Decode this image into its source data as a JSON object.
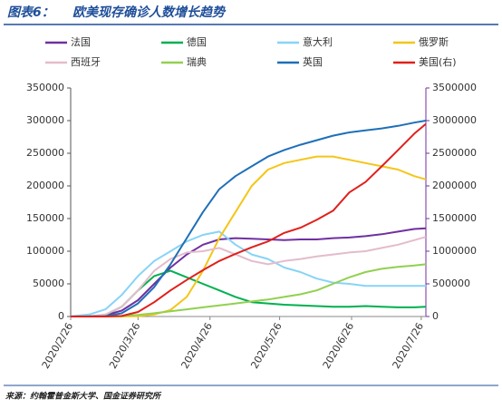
{
  "chart_data": {
    "type": "line",
    "figure_label": "图表6：",
    "title": "欧美现存确诊人数增长趋势",
    "source": "来源：约翰霍普金斯大学、国金证券研究所",
    "x": [
      "2020/2/26",
      "2020/3/5",
      "2020/3/12",
      "2020/3/19",
      "2020/3/26",
      "2020/4/2",
      "2020/4/9",
      "2020/4/16",
      "2020/4/23",
      "2020/4/30",
      "2020/5/7",
      "2020/5/14",
      "2020/5/21",
      "2020/5/28",
      "2020/6/4",
      "2020/6/11",
      "2020/6/18",
      "2020/6/25",
      "2020/7/2",
      "2020/7/9",
      "2020/7/16",
      "2020/7/23",
      "2020/7/28"
    ],
    "xlim": [
      "2020/2/26",
      "2020/7/28"
    ],
    "xticks": [
      "2020/2/26",
      "2020/3/26",
      "2020/4/26",
      "2020/5/26",
      "2020/6/26",
      "2020/7/26"
    ],
    "ylim": [
      0,
      350000
    ],
    "yticks": [
      0,
      50000,
      100000,
      150000,
      200000,
      250000,
      300000,
      350000
    ],
    "y2lim": [
      0,
      3500000
    ],
    "y2ticks": [
      0,
      500000,
      1000000,
      1500000,
      2000000,
      2500000,
      3000000,
      3500000
    ],
    "series": [
      {
        "name": "法国",
        "color": "#7030a0",
        "values": [
          0,
          300,
          2000,
          9000,
          25000,
          50000,
          75000,
          95000,
          110000,
          118000,
          120000,
          119000,
          118000,
          117000,
          118000,
          118000,
          120000,
          121000,
          123000,
          126000,
          130000,
          134000,
          135000
        ]
      },
      {
        "name": "德国",
        "color": "#00b050",
        "values": [
          0,
          300,
          2500,
          15000,
          40000,
          62000,
          70000,
          60000,
          50000,
          40000,
          30000,
          22000,
          20000,
          18000,
          17000,
          16000,
          15000,
          15000,
          16000,
          15000,
          14000,
          14000,
          15000
        ]
      },
      {
        "name": "意大利",
        "color": "#87d4f5",
        "values": [
          400,
          3000,
          11000,
          33000,
          62000,
          85000,
          100000,
          115000,
          125000,
          130000,
          110000,
          95000,
          88000,
          75000,
          68000,
          58000,
          52000,
          50000,
          47000,
          47000,
          47000,
          47000,
          47000
        ]
      },
      {
        "name": "俄罗斯",
        "color": "#f5c518",
        "values": [
          0,
          0,
          0,
          0,
          500,
          3000,
          10000,
          30000,
          70000,
          120000,
          160000,
          200000,
          225000,
          235000,
          240000,
          245000,
          245000,
          240000,
          235000,
          230000,
          225000,
          215000,
          210000
        ]
      },
      {
        "name": "西班牙",
        "color": "#e3bccb",
        "values": [
          0,
          100,
          3000,
          15000,
          40000,
          70000,
          88000,
          98000,
          100000,
          105000,
          95000,
          85000,
          80000,
          85000,
          88000,
          92000,
          95000,
          98000,
          100000,
          105000,
          110000,
          117000,
          122000
        ]
      },
      {
        "name": "瑞典",
        "color": "#92d050",
        "values": [
          0,
          0,
          100,
          900,
          2500,
          5000,
          8000,
          11000,
          14000,
          17000,
          20000,
          23000,
          26000,
          30000,
          34000,
          40000,
          50000,
          60000,
          68000,
          73000,
          76000,
          78000,
          80000
        ]
      },
      {
        "name": "英国",
        "color": "#1f6fb8",
        "values": [
          0,
          100,
          500,
          5000,
          20000,
          45000,
          80000,
          120000,
          160000,
          195000,
          215000,
          230000,
          245000,
          255000,
          263000,
          270000,
          277000,
          282000,
          285000,
          288000,
          292000,
          297000,
          300000
        ]
      },
      {
        "name": "美国(右)",
        "color": "#e0201a",
        "axis": "y2",
        "values": [
          0,
          0,
          500,
          8000,
          70000,
          220000,
          400000,
          560000,
          710000,
          850000,
          960000,
          1060000,
          1150000,
          1280000,
          1360000,
          1480000,
          1620000,
          1900000,
          2060000,
          2300000,
          2550000,
          2800000,
          2950000
        ]
      }
    ]
  }
}
